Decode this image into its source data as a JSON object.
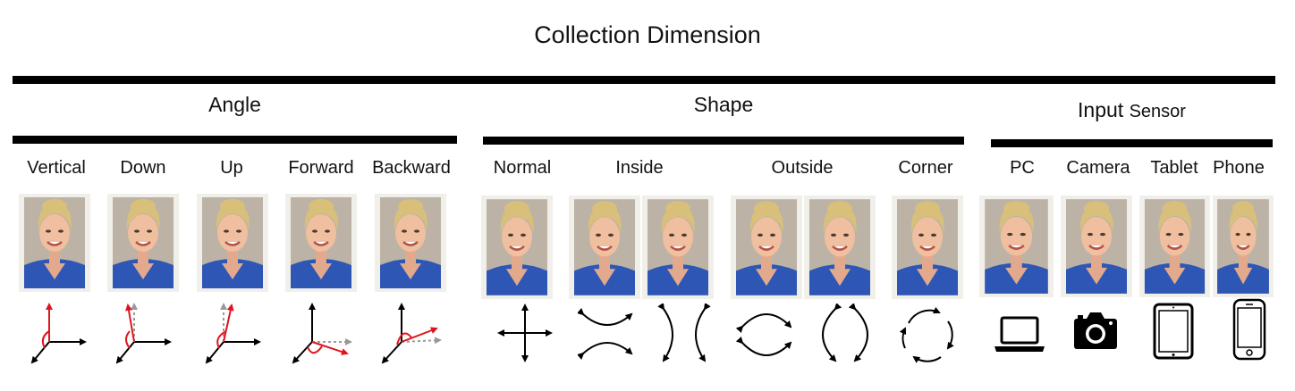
{
  "title": "Collection Dimension",
  "groups": {
    "angle": {
      "title": "Angle",
      "items": [
        {
          "label": "Vertical",
          "icon": "axes-vertical-icon"
        },
        {
          "label": "Down",
          "icon": "axes-down-icon"
        },
        {
          "label": "Up",
          "icon": "axes-up-icon"
        },
        {
          "label": "Forward",
          "icon": "axes-forward-icon"
        },
        {
          "label": "Backward",
          "icon": "axes-backward-icon"
        }
      ]
    },
    "shape": {
      "title": "Shape",
      "items": [
        {
          "label": "Normal",
          "icon": "cross-arrows-icon"
        },
        {
          "label": "Inside",
          "icon": "inward-curves-icon"
        },
        {
          "label": "Outside",
          "icon": "outward-curves-icon"
        },
        {
          "label": "Corner",
          "icon": "circular-arrows-icon"
        }
      ]
    },
    "sensor": {
      "title": "Input",
      "title_suffix": "Sensor",
      "items": [
        {
          "label": "PC",
          "icon": "laptop-icon"
        },
        {
          "label": "Camera",
          "icon": "camera-icon"
        },
        {
          "label": "Tablet",
          "icon": "tablet-icon"
        },
        {
          "label": "Phone",
          "icon": "phone-icon"
        }
      ]
    }
  },
  "colors": {
    "accent": "#e0141e",
    "ink": "#000000",
    "dotted": "#999999",
    "dress": "#2e56b5"
  }
}
